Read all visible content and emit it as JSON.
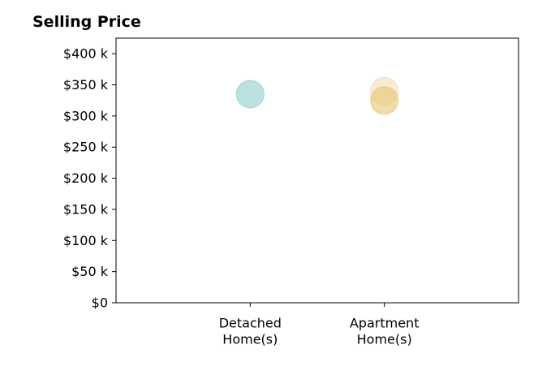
{
  "chart_data": {
    "type": "scatter",
    "title": "Selling Price",
    "categories": [
      "Detached\nHome(s)",
      "Apartment\nHome(s)"
    ],
    "y_ticks": [
      "$0",
      "$50 k",
      "$100 k",
      "$150 k",
      "$200 k",
      "$250 k",
      "$300 k",
      "$350 k",
      "$400 k"
    ],
    "y_tick_values": [
      0,
      50000,
      100000,
      150000,
      200000,
      250000,
      300000,
      350000,
      400000
    ],
    "ylim": [
      0,
      425000
    ],
    "xlim": [
      -1,
      2
    ],
    "grid": false,
    "points": [
      {
        "category": "Detached\nHome(s)",
        "value": 335000,
        "color": "#8ecfcb",
        "opacity": 0.6
      },
      {
        "category": "Apartment\nHome(s)",
        "value": 340000,
        "color": "#f0dcae",
        "opacity": 0.55
      },
      {
        "category": "Apartment\nHome(s)",
        "value": 325000,
        "color": "#e8c97a",
        "opacity": 0.65
      }
    ]
  }
}
